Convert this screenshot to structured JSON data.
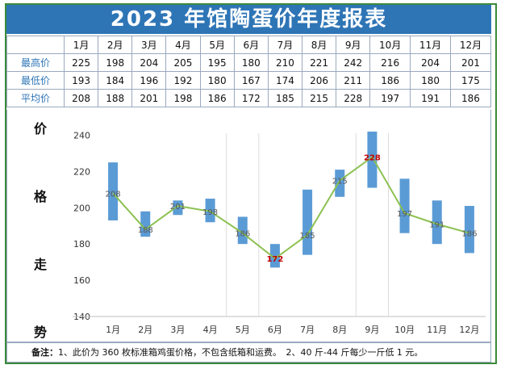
{
  "title": "2023 年馆陶蛋价年度报表",
  "table": {
    "months": [
      "1月",
      "2月",
      "3月",
      "4月",
      "5月",
      "6月",
      "7月",
      "8月",
      "9月",
      "10月",
      "11月",
      "12月"
    ],
    "rows": [
      {
        "label": "最高价",
        "values": [
          225,
          198,
          204,
          205,
          195,
          180,
          210,
          221,
          242,
          216,
          204,
          201
        ]
      },
      {
        "label": "最低价",
        "values": [
          193,
          184,
          196,
          192,
          180,
          167,
          174,
          206,
          211,
          186,
          180,
          175
        ]
      },
      {
        "label": "平均价",
        "values": [
          208,
          188,
          201,
          198,
          186,
          172,
          185,
          215,
          228,
          197,
          191,
          186
        ]
      }
    ]
  },
  "axis_title_chars": [
    "价",
    "格",
    "走",
    "势"
  ],
  "chart_data": {
    "type": "line",
    "categories": [
      "1月",
      "2月",
      "3月",
      "4月",
      "5月",
      "6月",
      "7月",
      "8月",
      "9月",
      "10月",
      "11月",
      "12月"
    ],
    "series": [
      {
        "name": "",
        "values": [
          208,
          188,
          201,
          198,
          186,
          172,
          185,
          215,
          228,
          197,
          191,
          186
        ]
      }
    ],
    "ranges": {
      "high": [
        225,
        198,
        204,
        205,
        195,
        180,
        210,
        221,
        242,
        216,
        204,
        201
      ],
      "low": [
        193,
        184,
        196,
        192,
        180,
        167,
        174,
        206,
        211,
        186,
        180,
        175
      ]
    },
    "highlight": {
      "min_index": 5,
      "max_index": 8
    },
    "ylim": [
      140,
      250
    ],
    "yticks": [
      140,
      160,
      180,
      200,
      220,
      240
    ],
    "colors": {
      "bar": "#5b9bd5",
      "line": "#8cc152",
      "highlight": "#c00000"
    }
  },
  "note": {
    "prefix": "备注：",
    "text": "1、此价为 360 枚标准箱鸡蛋价格，不包含纸箱和运费。　2、40 斤-44 斤每少一斤低 1 元。"
  }
}
